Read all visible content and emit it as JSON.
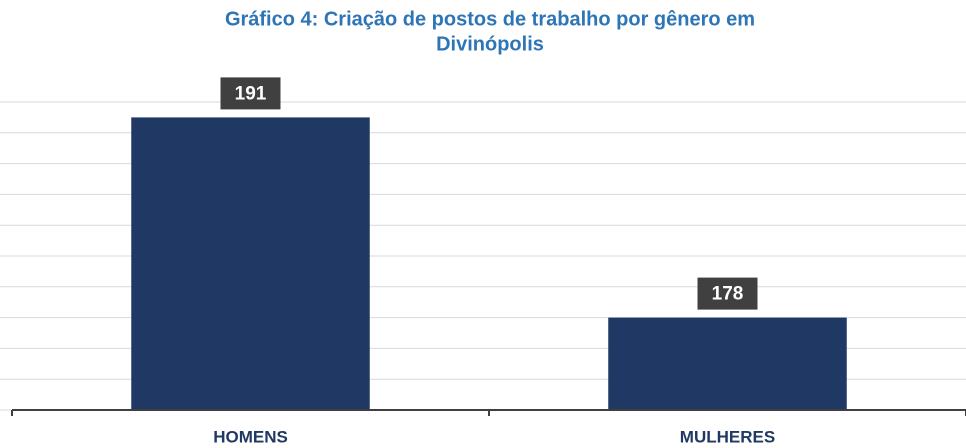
{
  "chart_data": {
    "type": "bar",
    "title": [
      "Gráfico 4: Criação de postos de trabalho por gênero em",
      "Divinópolis"
    ],
    "categories": [
      "HOMENS",
      "MULHERES"
    ],
    "values": [
      191,
      178
    ],
    "color": "#1f3864",
    "ylim": [
      172,
      192
    ],
    "yticks": [
      172,
      174,
      176,
      178,
      180,
      182,
      184,
      186,
      188,
      190,
      192
    ],
    "grid": true
  }
}
